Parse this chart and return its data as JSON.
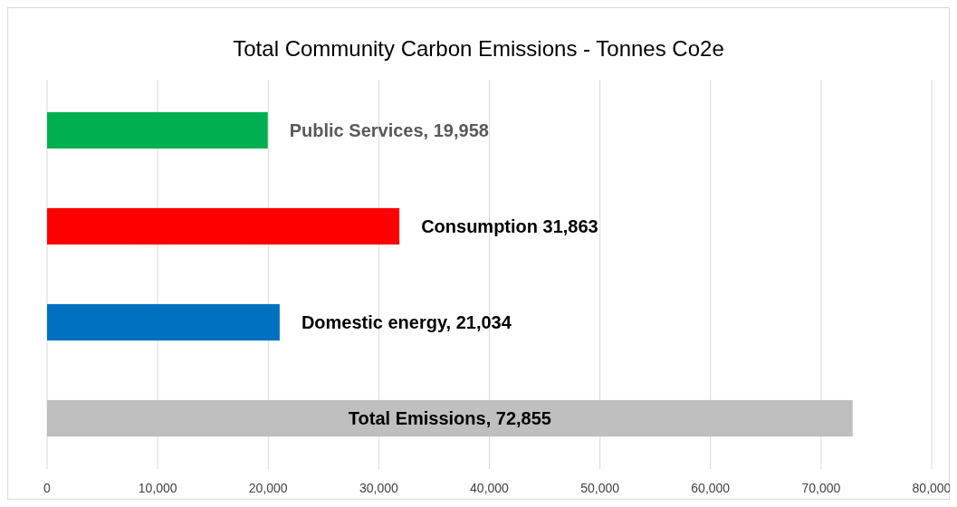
{
  "chart_data": {
    "type": "bar",
    "orientation": "horizontal",
    "title": "Total Community Carbon Emissions - Tonnes Co2e",
    "categories": [
      null,
      null,
      null,
      null
    ],
    "values": [
      19958,
      31863,
      21034,
      72855
    ],
    "colors": [
      "#00b050",
      "#ff0000",
      "#0070c0",
      "#bfbfbf"
    ],
    "value_labels": [
      "Public Services, 19,958",
      "Consumption  31,863",
      "Domestic energy, 21,034",
      "Total Emissions, 72,855"
    ],
    "xlim": [
      0,
      80000
    ],
    "xticks": [
      {
        "value": 0,
        "label": "0"
      },
      {
        "value": 10000,
        "label": "10,000"
      },
      {
        "value": 20000,
        "label": "20,000"
      },
      {
        "value": 30000,
        "label": "30,000"
      },
      {
        "value": 40000,
        "label": "40,000"
      },
      {
        "value": 50000,
        "label": "50,000"
      },
      {
        "value": 60000,
        "label": "60,000"
      },
      {
        "value": 70000,
        "label": "70,000"
      },
      {
        "value": 80000,
        "label": "80,000"
      }
    ],
    "grid": "x"
  }
}
